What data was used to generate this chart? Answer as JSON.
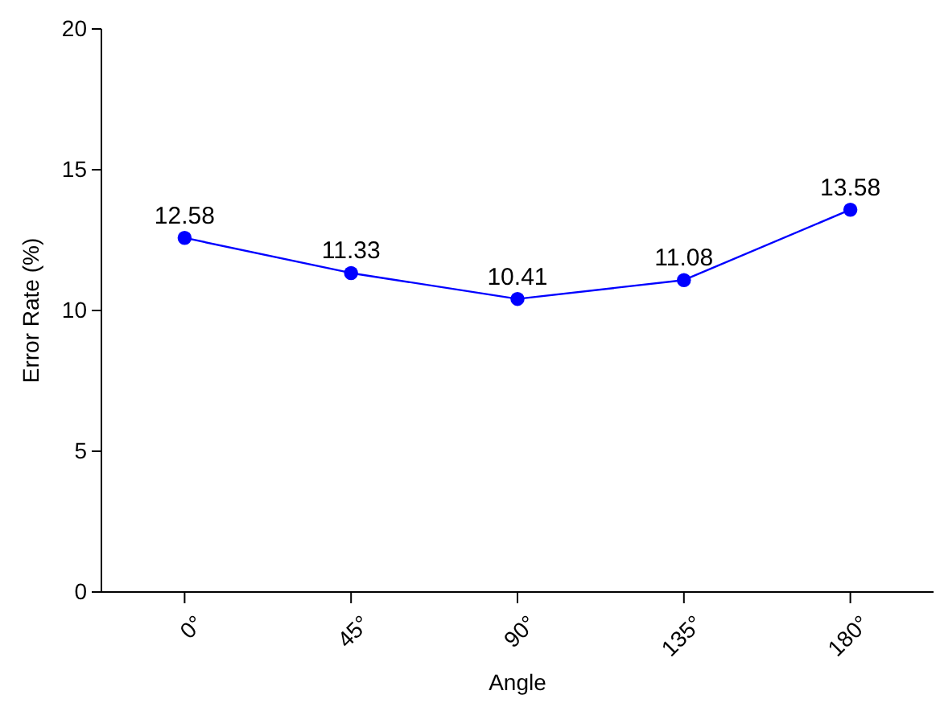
{
  "chart_data": {
    "type": "line",
    "xlabel": "Angle",
    "ylabel": "Error Rate (%)",
    "categories": [
      "0°",
      "45°",
      "90°",
      "135°",
      "180°"
    ],
    "series": [
      {
        "color": "#0000ff",
        "values": [
          12.58,
          11.33,
          10.41,
          11.08,
          13.58
        ]
      }
    ],
    "ylim": [
      0,
      20
    ],
    "yticks": [
      0,
      5,
      10,
      15,
      20
    ],
    "data_labels": true,
    "marker": "circle",
    "line_style": "solid",
    "grid": false
  }
}
